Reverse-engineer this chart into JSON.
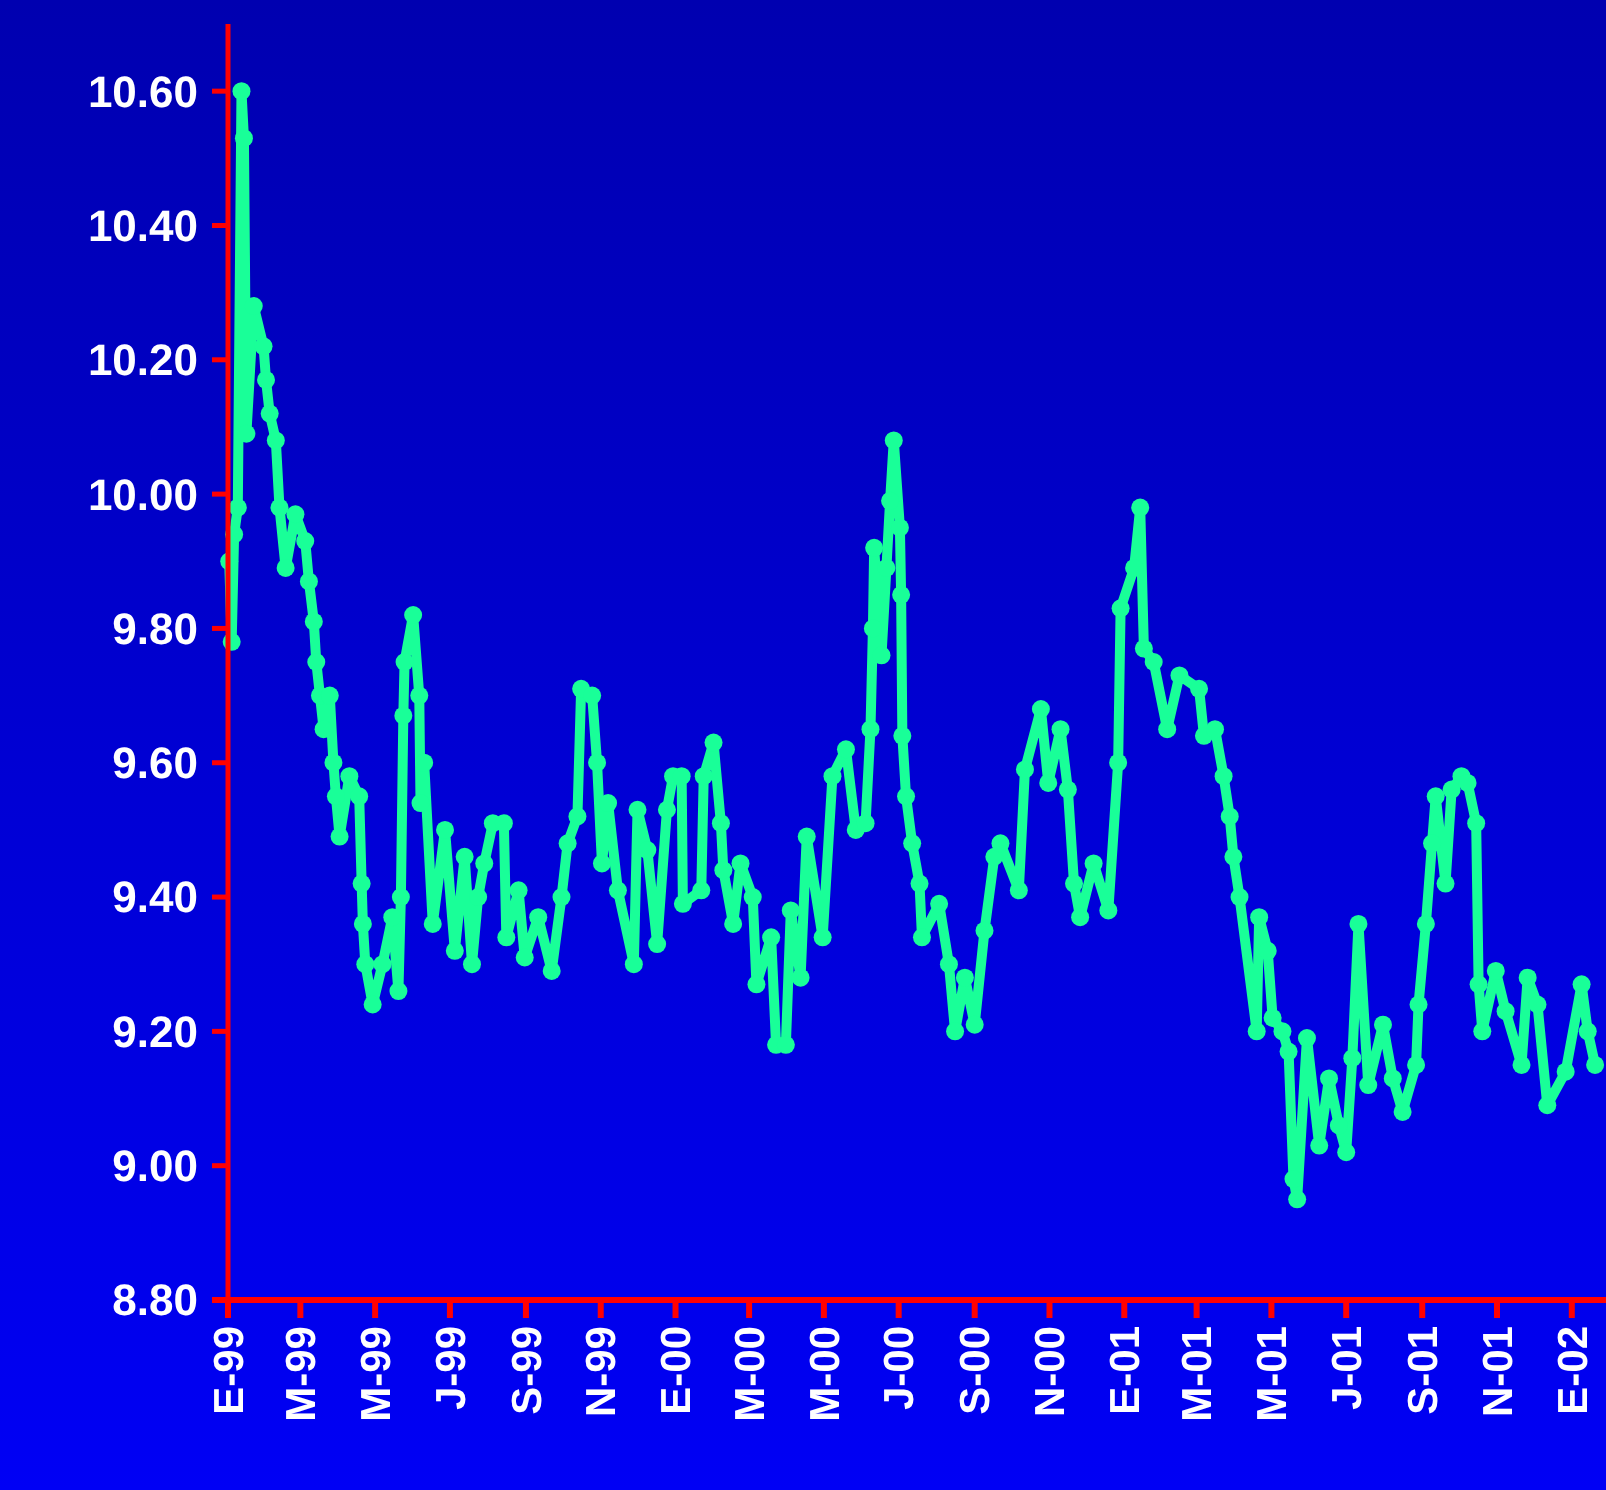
{
  "chart_data": {
    "type": "line",
    "marker": "circle",
    "x": [
      "1999-01-02",
      "1999-01-04",
      "1999-01-06",
      "1999-01-09",
      "1999-01-12",
      "1999-01-14",
      "1999-01-16",
      "1999-01-22",
      "1999-01-30",
      "1999-02-01",
      "1999-02-04",
      "1999-02-09",
      "1999-02-12",
      "1999-02-17",
      "1999-02-25",
      "1999-03-05",
      "1999-03-08",
      "1999-03-12",
      "1999-03-14",
      "1999-03-17",
      "1999-03-20",
      "1999-03-25",
      "1999-03-28",
      "1999-03-30",
      "1999-04-02",
      "1999-04-10",
      "1999-04-18",
      "1999-04-20",
      "1999-04-21",
      "1999-04-23",
      "1999-04-29",
      "1999-05-07",
      "1999-05-15",
      "1999-05-20",
      "1999-05-22",
      "1999-05-24",
      "1999-05-25",
      "1999-06-01",
      "1999-06-06",
      "1999-06-07",
      "1999-06-10",
      "1999-06-17",
      "1999-06-27",
      "1999-07-05",
      "1999-07-13",
      "1999-07-19",
      "1999-07-24",
      "1999-07-29",
      "1999-08-05",
      "1999-08-14",
      "1999-08-16",
      "1999-08-26",
      "1999-08-31",
      "1999-09-11",
      "1999-09-22",
      "1999-09-30",
      "1999-10-05",
      "1999-10-13",
      "1999-10-16",
      "1999-10-25",
      "1999-10-29",
      "1999-11-02",
      "1999-11-07",
      "1999-11-15",
      "1999-11-28",
      "1999-12-01",
      "1999-12-09",
      "1999-12-17",
      "1999-12-25",
      "1999-12-30",
      "2000-01-06",
      "2000-01-07",
      "2000-01-22",
      "2000-01-24",
      "2000-02-01",
      "2000-02-07",
      "2000-02-09",
      "2000-02-17",
      "2000-02-23",
      "2000-03-04",
      "2000-03-07",
      "2000-03-19",
      "2000-03-23",
      "2000-03-31",
      "2000-04-04",
      "2000-04-12",
      "2000-04-17",
      "2000-04-30",
      "2000-05-08",
      "2000-05-19",
      "2000-05-27",
      "2000-06-04",
      "2000-06-08",
      "2000-06-10",
      "2000-06-11",
      "2000-06-17",
      "2000-06-21",
      "2000-06-24",
      "2000-06-27",
      "2000-07-02",
      "2000-07-03",
      "2000-07-04",
      "2000-07-07",
      "2000-07-12",
      "2000-07-18",
      "2000-07-20",
      "2000-08-03",
      "2000-08-11",
      "2000-08-16",
      "2000-08-24",
      "2000-09-01",
      "2000-09-09",
      "2000-09-17",
      "2000-09-22",
      "2000-10-07",
      "2000-10-12",
      "2000-10-25",
      "2000-10-31",
      "2000-11-10",
      "2000-11-16",
      "2000-11-21",
      "2000-11-26",
      "2000-12-07",
      "2000-12-19",
      "2000-12-27",
      "2000-12-29",
      "2001-01-09",
      "2001-01-14",
      "2001-01-17",
      "2001-01-25",
      "2001-02-05",
      "2001-02-15",
      "2001-03-03",
      "2001-03-07",
      "2001-03-16",
      "2001-03-23",
      "2001-03-28",
      "2001-03-31",
      "2001-04-05",
      "2001-04-19",
      "2001-04-21",
      "2001-04-28",
      "2001-05-02",
      "2001-05-10",
      "2001-05-15",
      "2001-05-19",
      "2001-05-22",
      "2001-05-30",
      "2001-06-09",
      "2001-06-17",
      "2001-06-25",
      "2001-07-01",
      "2001-07-06",
      "2001-07-11",
      "2001-07-19",
      "2001-07-31",
      "2001-08-08",
      "2001-08-16",
      "2001-08-27",
      "2001-08-29",
      "2001-09-04",
      "2001-09-09",
      "2001-09-12",
      "2001-09-20",
      "2001-09-25",
      "2001-10-03",
      "2001-10-08",
      "2001-10-15",
      "2001-10-17",
      "2001-10-20",
      "2001-10-31",
      "2001-11-08",
      "2001-11-21",
      "2001-11-26",
      "2001-12-04",
      "2001-12-12",
      "2001-12-27",
      "2002-01-09",
      "2002-01-14",
      "2002-01-20"
    ],
    "series": [
      {
        "color": "#19ff98",
        "values": [
          9.9,
          9.78,
          9.94,
          9.98,
          10.6,
          10.53,
          10.09,
          10.28,
          10.22,
          10.17,
          10.12,
          10.08,
          9.98,
          9.89,
          9.97,
          9.93,
          9.87,
          9.81,
          9.75,
          9.7,
          9.65,
          9.7,
          9.6,
          9.55,
          9.49,
          9.58,
          9.55,
          9.42,
          9.36,
          9.3,
          9.24,
          9.3,
          9.37,
          9.26,
          9.4,
          9.67,
          9.75,
          9.82,
          9.7,
          9.54,
          9.6,
          9.36,
          9.5,
          9.32,
          9.46,
          9.3,
          9.4,
          9.45,
          9.51,
          9.51,
          9.34,
          9.41,
          9.31,
          9.37,
          9.29,
          9.4,
          9.48,
          9.52,
          9.71,
          9.7,
          9.6,
          9.45,
          9.54,
          9.41,
          9.3,
          9.53,
          9.47,
          9.33,
          9.53,
          9.58,
          9.58,
          9.39,
          9.41,
          9.58,
          9.63,
          9.51,
          9.44,
          9.36,
          9.45,
          9.4,
          9.27,
          9.34,
          9.18,
          9.18,
          9.38,
          9.28,
          9.49,
          9.34,
          9.58,
          9.62,
          9.5,
          9.51,
          9.65,
          9.8,
          9.92,
          9.76,
          9.89,
          9.99,
          10.08,
          9.95,
          9.85,
          9.64,
          9.55,
          9.48,
          9.42,
          9.34,
          9.39,
          9.3,
          9.2,
          9.28,
          9.21,
          9.35,
          9.46,
          9.48,
          9.41,
          9.59,
          9.68,
          9.57,
          9.65,
          9.56,
          9.42,
          9.37,
          9.45,
          9.38,
          9.6,
          9.83,
          9.89,
          9.98,
          9.77,
          9.75,
          9.65,
          9.73,
          9.71,
          9.64,
          9.65,
          9.58,
          9.52,
          9.46,
          9.4,
          9.2,
          9.37,
          9.32,
          9.22,
          9.2,
          9.17,
          8.98,
          8.95,
          9.19,
          9.03,
          9.13,
          9.06,
          9.02,
          9.16,
          9.36,
          9.12,
          9.21,
          9.13,
          9.08,
          9.15,
          9.24,
          9.36,
          9.48,
          9.55,
          9.42,
          9.56,
          9.58,
          9.57,
          9.51,
          9.27,
          9.2,
          9.29,
          9.23,
          9.15,
          9.28,
          9.24,
          9.09,
          9.14,
          9.27,
          9.2,
          9.15
        ]
      }
    ],
    "xlim": [
      "1999-01-01",
      "2002-01-24"
    ],
    "xticks": [
      {
        "value": "1999-01-01",
        "label": "E-99"
      },
      {
        "value": "1999-03-01",
        "label": "M-99"
      },
      {
        "value": "1999-05-01",
        "label": "M-99"
      },
      {
        "value": "1999-07-01",
        "label": "J-99"
      },
      {
        "value": "1999-09-01",
        "label": "S-99"
      },
      {
        "value": "1999-11-01",
        "label": "N-99"
      },
      {
        "value": "2000-01-01",
        "label": "E-00"
      },
      {
        "value": "2000-03-01",
        "label": "M-00"
      },
      {
        "value": "2000-05-01",
        "label": "M-00"
      },
      {
        "value": "2000-07-01",
        "label": "J-00"
      },
      {
        "value": "2000-09-01",
        "label": "S-00"
      },
      {
        "value": "2000-11-01",
        "label": "N-00"
      },
      {
        "value": "2001-01-01",
        "label": "E-01"
      },
      {
        "value": "2001-03-01",
        "label": "M-01"
      },
      {
        "value": "2001-05-01",
        "label": "M-01"
      },
      {
        "value": "2001-07-01",
        "label": "J-01"
      },
      {
        "value": "2001-09-01",
        "label": "S-01"
      },
      {
        "value": "2001-11-01",
        "label": "N-01"
      },
      {
        "value": "2002-01-01",
        "label": "E-02"
      }
    ],
    "ylim": [
      8.8,
      10.7
    ],
    "yticks": [
      {
        "value": 8.8,
        "label": "8.80"
      },
      {
        "value": 9.0,
        "label": "9.00"
      },
      {
        "value": 9.2,
        "label": "9.20"
      },
      {
        "value": 9.4,
        "label": "9.40"
      },
      {
        "value": 9.6,
        "label": "9.60"
      },
      {
        "value": 9.8,
        "label": "9.80"
      },
      {
        "value": 10.0,
        "label": "10.00"
      },
      {
        "value": 10.2,
        "label": "10.20"
      },
      {
        "value": 10.4,
        "label": "10.40"
      },
      {
        "value": 10.6,
        "label": "10.60"
      }
    ]
  }
}
